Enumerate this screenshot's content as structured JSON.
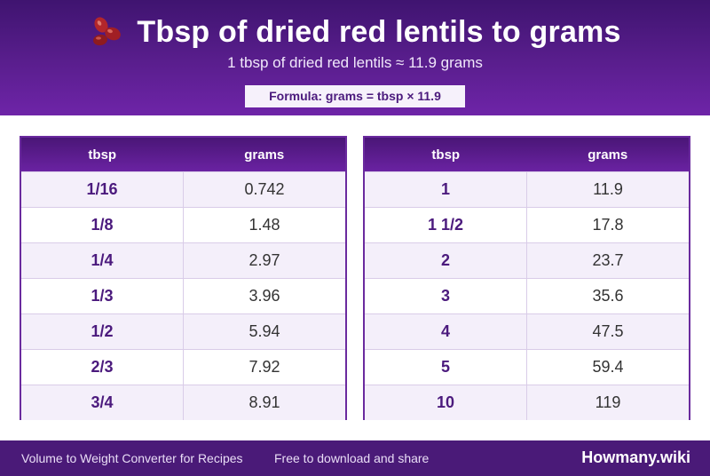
{
  "header": {
    "title": "Tbsp of dried red lentils to grams",
    "subtitle": "1 tbsp of dried red lentils ≈ 11.9 grams",
    "formula": "Formula: grams = tbsp × 11.9",
    "icon": "beans-icon"
  },
  "tables": {
    "left": {
      "headers": [
        "tbsp",
        "grams"
      ],
      "rows": [
        [
          "1/16",
          "0.742"
        ],
        [
          "1/8",
          "1.48"
        ],
        [
          "1/4",
          "2.97"
        ],
        [
          "1/3",
          "3.96"
        ],
        [
          "1/2",
          "5.94"
        ],
        [
          "2/3",
          "7.92"
        ],
        [
          "3/4",
          "8.91"
        ]
      ]
    },
    "right": {
      "headers": [
        "tbsp",
        "grams"
      ],
      "rows": [
        [
          "1",
          "11.9"
        ],
        [
          "1 1/2",
          "17.8"
        ],
        [
          "2",
          "23.7"
        ],
        [
          "3",
          "35.6"
        ],
        [
          "4",
          "47.5"
        ],
        [
          "5",
          "59.4"
        ],
        [
          "10",
          "119"
        ]
      ]
    }
  },
  "footer": {
    "left_text": "Volume to Weight Converter for Recipes",
    "middle_text": "Free to download and share",
    "brand": "Howmany.wiki"
  },
  "colors": {
    "header_dark": "#3f1470",
    "header_light": "#6e24a8",
    "accent_text": "#4b1a7d",
    "row_alt": "#f4effa",
    "footer_bg": "#4a1a78"
  }
}
